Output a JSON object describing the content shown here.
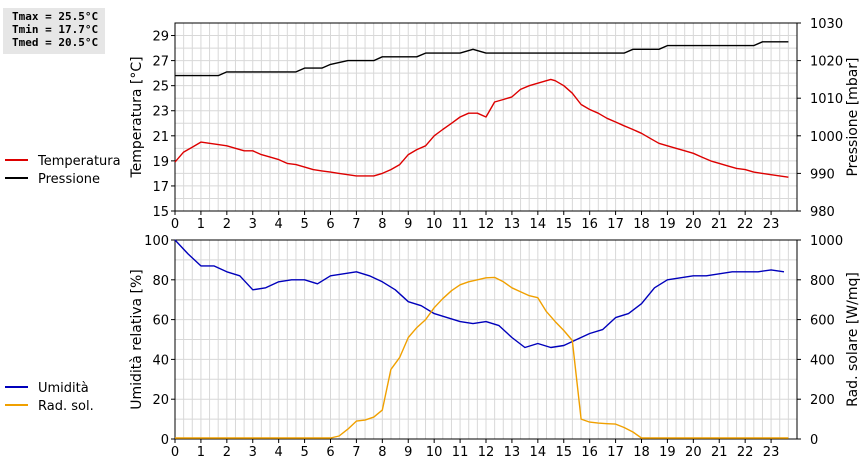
{
  "stats": {
    "tmax": "Tmax = 25.5°C",
    "tmin": "Tmin = 17.7°C",
    "tmed": "Tmed = 20.5°C"
  },
  "colors": {
    "temperature": "#dd0000",
    "pressure": "#000000",
    "humidity": "#0000bb",
    "radiation": "#f0a000",
    "grid": "#d8d8d8"
  },
  "chart_data": [
    {
      "type": "line",
      "xlim": [
        0,
        24
      ],
      "xticks": [
        0,
        1,
        2,
        3,
        4,
        5,
        6,
        7,
        8,
        9,
        10,
        11,
        12,
        13,
        14,
        15,
        16,
        17,
        18,
        19,
        20,
        21,
        22,
        23
      ],
      "ylabel_left": "Temperatura [°C]",
      "ylim_left": [
        15,
        30
      ],
      "yticks_left": [
        15,
        17,
        19,
        21,
        23,
        25,
        27,
        29
      ],
      "ylabel_right": "Pressione [mbar]",
      "ylim_right": [
        980,
        1030
      ],
      "yticks_right": [
        980,
        990,
        1000,
        1010,
        1020,
        1030
      ],
      "legend_position": "left",
      "grid": true,
      "series": [
        {
          "name": "Temperatura",
          "axis": "left",
          "color": "#dd0000",
          "points": [
            [
              0,
              18.9
            ],
            [
              0.33,
              19.7
            ],
            [
              0.67,
              20.1
            ],
            [
              1,
              20.5
            ],
            [
              1.33,
              20.4
            ],
            [
              1.67,
              20.3
            ],
            [
              2,
              20.2
            ],
            [
              2.33,
              20.0
            ],
            [
              2.67,
              19.8
            ],
            [
              3,
              19.8
            ],
            [
              3.33,
              19.5
            ],
            [
              3.67,
              19.3
            ],
            [
              4,
              19.1
            ],
            [
              4.33,
              18.8
            ],
            [
              4.67,
              18.7
            ],
            [
              5,
              18.5
            ],
            [
              5.33,
              18.3
            ],
            [
              5.67,
              18.2
            ],
            [
              6,
              18.1
            ],
            [
              6.33,
              18.0
            ],
            [
              6.67,
              17.9
            ],
            [
              7,
              17.8
            ],
            [
              7.33,
              17.8
            ],
            [
              7.67,
              17.8
            ],
            [
              8,
              18.0
            ],
            [
              8.33,
              18.3
            ],
            [
              8.67,
              18.7
            ],
            [
              9,
              19.5
            ],
            [
              9.33,
              19.9
            ],
            [
              9.67,
              20.2
            ],
            [
              10,
              21.0
            ],
            [
              10.33,
              21.5
            ],
            [
              10.67,
              22.0
            ],
            [
              11,
              22.5
            ],
            [
              11.33,
              22.8
            ],
            [
              11.67,
              22.8
            ],
            [
              12,
              22.5
            ],
            [
              12.33,
              23.7
            ],
            [
              12.67,
              23.9
            ],
            [
              13,
              24.1
            ],
            [
              13.33,
              24.7
            ],
            [
              13.67,
              25.0
            ],
            [
              14,
              25.2
            ],
            [
              14.33,
              25.4
            ],
            [
              14.5,
              25.5
            ],
            [
              14.67,
              25.4
            ],
            [
              15,
              25.0
            ],
            [
              15.33,
              24.4
            ],
            [
              15.67,
              23.5
            ],
            [
              16,
              23.1
            ],
            [
              16.33,
              22.8
            ],
            [
              16.67,
              22.4
            ],
            [
              17,
              22.1
            ],
            [
              17.33,
              21.8
            ],
            [
              17.67,
              21.5
            ],
            [
              18,
              21.2
            ],
            [
              18.33,
              20.8
            ],
            [
              18.67,
              20.4
            ],
            [
              19,
              20.2
            ],
            [
              19.33,
              20.0
            ],
            [
              19.67,
              19.8
            ],
            [
              20,
              19.6
            ],
            [
              20.33,
              19.3
            ],
            [
              20.67,
              19.0
            ],
            [
              21,
              18.8
            ],
            [
              21.33,
              18.6
            ],
            [
              21.67,
              18.4
            ],
            [
              22,
              18.3
            ],
            [
              22.33,
              18.1
            ],
            [
              22.67,
              18.0
            ],
            [
              23,
              17.9
            ],
            [
              23.33,
              17.8
            ],
            [
              23.67,
              17.7
            ]
          ]
        },
        {
          "name": "Pressione",
          "axis": "right",
          "color": "#000000",
          "points": [
            [
              0,
              1016
            ],
            [
              1,
              1016
            ],
            [
              1.67,
              1016
            ],
            [
              2,
              1017
            ],
            [
              3,
              1017
            ],
            [
              4,
              1017
            ],
            [
              4.67,
              1017
            ],
            [
              5,
              1018
            ],
            [
              5.67,
              1018
            ],
            [
              6,
              1019
            ],
            [
              6.67,
              1020
            ],
            [
              7,
              1020
            ],
            [
              7.67,
              1020
            ],
            [
              8,
              1021
            ],
            [
              9,
              1021
            ],
            [
              9.33,
              1021
            ],
            [
              9.67,
              1022
            ],
            [
              10,
              1022
            ],
            [
              10.67,
              1022
            ],
            [
              11,
              1022
            ],
            [
              11.5,
              1023
            ],
            [
              12,
              1022
            ],
            [
              13,
              1022
            ],
            [
              14,
              1022
            ],
            [
              15,
              1022
            ],
            [
              16,
              1022
            ],
            [
              17,
              1022
            ],
            [
              17.33,
              1022
            ],
            [
              17.67,
              1023
            ],
            [
              18,
              1023
            ],
            [
              18.67,
              1023
            ],
            [
              19,
              1024
            ],
            [
              20,
              1024
            ],
            [
              21,
              1024
            ],
            [
              22,
              1024
            ],
            [
              22.33,
              1024
            ],
            [
              22.67,
              1025
            ],
            [
              23,
              1025
            ],
            [
              23.67,
              1025
            ]
          ]
        }
      ]
    },
    {
      "type": "line",
      "xlim": [
        0,
        24
      ],
      "xticks": [
        0,
        1,
        2,
        3,
        4,
        5,
        6,
        7,
        8,
        9,
        10,
        11,
        12,
        13,
        14,
        15,
        16,
        17,
        18,
        19,
        20,
        21,
        22,
        23
      ],
      "ylabel_left": "Umidità relativa [%]",
      "ylim_left": [
        0,
        100
      ],
      "yticks_left": [
        0,
        20,
        40,
        60,
        80,
        100
      ],
      "ylabel_right": "Rad. solare [W/mq]",
      "ylim_right": [
        0,
        1000
      ],
      "yticks_right": [
        0,
        200,
        400,
        600,
        800,
        1000
      ],
      "legend_position": "left",
      "grid": true,
      "series": [
        {
          "name": "Umidità",
          "axis": "left",
          "color": "#0000bb",
          "points": [
            [
              0,
              100
            ],
            [
              0.5,
              93
            ],
            [
              1,
              87
            ],
            [
              1.5,
              87
            ],
            [
              2,
              84
            ],
            [
              2.5,
              82
            ],
            [
              3,
              75
            ],
            [
              3.5,
              76
            ],
            [
              4,
              79
            ],
            [
              4.5,
              80
            ],
            [
              5,
              80
            ],
            [
              5.5,
              78
            ],
            [
              6,
              82
            ],
            [
              6.5,
              83
            ],
            [
              7,
              84
            ],
            [
              7.5,
              82
            ],
            [
              8,
              79
            ],
            [
              8.5,
              75
            ],
            [
              9,
              69
            ],
            [
              9.5,
              67
            ],
            [
              10,
              63
            ],
            [
              10.5,
              61
            ],
            [
              11,
              59
            ],
            [
              11.5,
              58
            ],
            [
              12,
              59
            ],
            [
              12.5,
              57
            ],
            [
              13,
              51
            ],
            [
              13.5,
              46
            ],
            [
              14,
              48
            ],
            [
              14.5,
              46
            ],
            [
              15,
              47
            ],
            [
              15.5,
              50
            ],
            [
              16,
              53
            ],
            [
              16.5,
              55
            ],
            [
              17,
              61
            ],
            [
              17.5,
              63
            ],
            [
              18,
              68
            ],
            [
              18.5,
              76
            ],
            [
              19,
              80
            ],
            [
              19.5,
              81
            ],
            [
              20,
              82
            ],
            [
              20.5,
              82
            ],
            [
              21,
              83
            ],
            [
              21.5,
              84
            ],
            [
              22,
              84
            ],
            [
              22.5,
              84
            ],
            [
              23,
              85
            ],
            [
              23.5,
              84
            ]
          ]
        },
        {
          "name": "Rad. sol.",
          "axis": "right",
          "color": "#f0a000",
          "points": [
            [
              0,
              5
            ],
            [
              1,
              5
            ],
            [
              2,
              5
            ],
            [
              3,
              5
            ],
            [
              4,
              5
            ],
            [
              5,
              5
            ],
            [
              6,
              5
            ],
            [
              6.33,
              15
            ],
            [
              6.67,
              50
            ],
            [
              7,
              90
            ],
            [
              7.33,
              95
            ],
            [
              7.67,
              110
            ],
            [
              8,
              145
            ],
            [
              8.33,
              350
            ],
            [
              8.67,
              410
            ],
            [
              9,
              510
            ],
            [
              9.33,
              560
            ],
            [
              9.67,
              600
            ],
            [
              10,
              660
            ],
            [
              10.33,
              705
            ],
            [
              10.67,
              745
            ],
            [
              11,
              775
            ],
            [
              11.33,
              790
            ],
            [
              11.67,
              800
            ],
            [
              12,
              810
            ],
            [
              12.33,
              812
            ],
            [
              12.67,
              790
            ],
            [
              13,
              760
            ],
            [
              13.33,
              740
            ],
            [
              13.67,
              720
            ],
            [
              14,
              710
            ],
            [
              14.33,
              640
            ],
            [
              14.67,
              590
            ],
            [
              15,
              545
            ],
            [
              15.33,
              495
            ],
            [
              15.67,
              100
            ],
            [
              16,
              85
            ],
            [
              16.33,
              80
            ],
            [
              16.67,
              77
            ],
            [
              17,
              75
            ],
            [
              17.33,
              58
            ],
            [
              17.67,
              35
            ],
            [
              18,
              5
            ],
            [
              19,
              5
            ],
            [
              20,
              5
            ],
            [
              21,
              5
            ],
            [
              22,
              5
            ],
            [
              23,
              5
            ],
            [
              23.67,
              5
            ]
          ]
        }
      ]
    }
  ]
}
